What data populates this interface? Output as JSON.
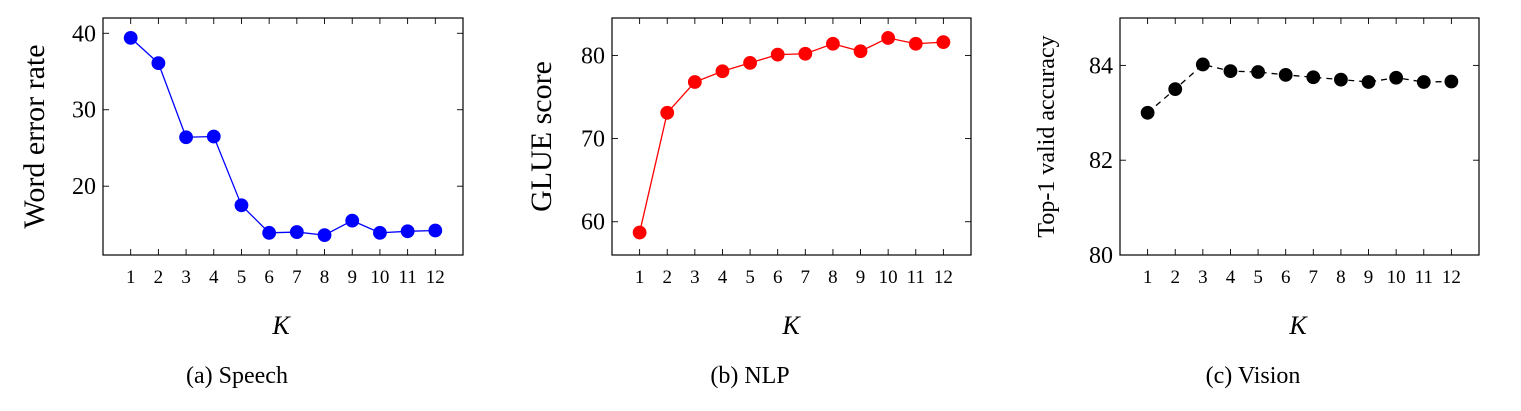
{
  "chart_data": [
    {
      "type": "line",
      "caption": "(a) Speech",
      "xlabel": "K",
      "ylabel": "Word error rate",
      "x": [
        1,
        2,
        3,
        4,
        5,
        6,
        7,
        8,
        9,
        10,
        11,
        12
      ],
      "xlim": [
        0,
        13
      ],
      "ylim": [
        11,
        42
      ],
      "yticks": [
        20,
        30,
        40
      ],
      "grid": false,
      "series": [
        {
          "values": [
            39.4,
            36.1,
            26.4,
            26.5,
            17.5,
            13.9,
            14.0,
            13.6,
            15.5,
            13.9,
            14.1,
            14.2
          ],
          "color": "#0000ff",
          "line_style": "solid",
          "marker": "circle"
        }
      ]
    },
    {
      "type": "line",
      "caption": "(b) NLP",
      "xlabel": "K",
      "ylabel": "GLUE score",
      "x": [
        1,
        2,
        3,
        4,
        5,
        6,
        7,
        8,
        9,
        10,
        11,
        12
      ],
      "xlim": [
        0,
        13
      ],
      "ylim": [
        56,
        84.5
      ],
      "yticks": [
        60,
        70,
        80
      ],
      "grid": false,
      "series": [
        {
          "values": [
            58.7,
            73.1,
            76.8,
            78.1,
            79.1,
            80.1,
            80.2,
            81.4,
            80.5,
            82.1,
            81.4,
            81.6
          ],
          "color": "#ff0000",
          "line_style": "solid",
          "marker": "circle"
        }
      ]
    },
    {
      "type": "line",
      "caption": "(c) Vision",
      "xlabel": "K",
      "ylabel": "Top-1 valid accuracy",
      "x": [
        1,
        2,
        3,
        4,
        5,
        6,
        7,
        8,
        9,
        10,
        11,
        12
      ],
      "xlim": [
        0,
        13
      ],
      "ylim": [
        80,
        85
      ],
      "yticks": [
        80,
        82,
        84
      ],
      "grid": false,
      "series": [
        {
          "values": [
            83.0,
            83.5,
            84.02,
            83.88,
            83.86,
            83.8,
            83.75,
            83.7,
            83.65,
            83.74,
            83.65,
            83.66
          ],
          "color": "#000000",
          "line_style": "dashed",
          "marker": "circle"
        }
      ]
    }
  ]
}
